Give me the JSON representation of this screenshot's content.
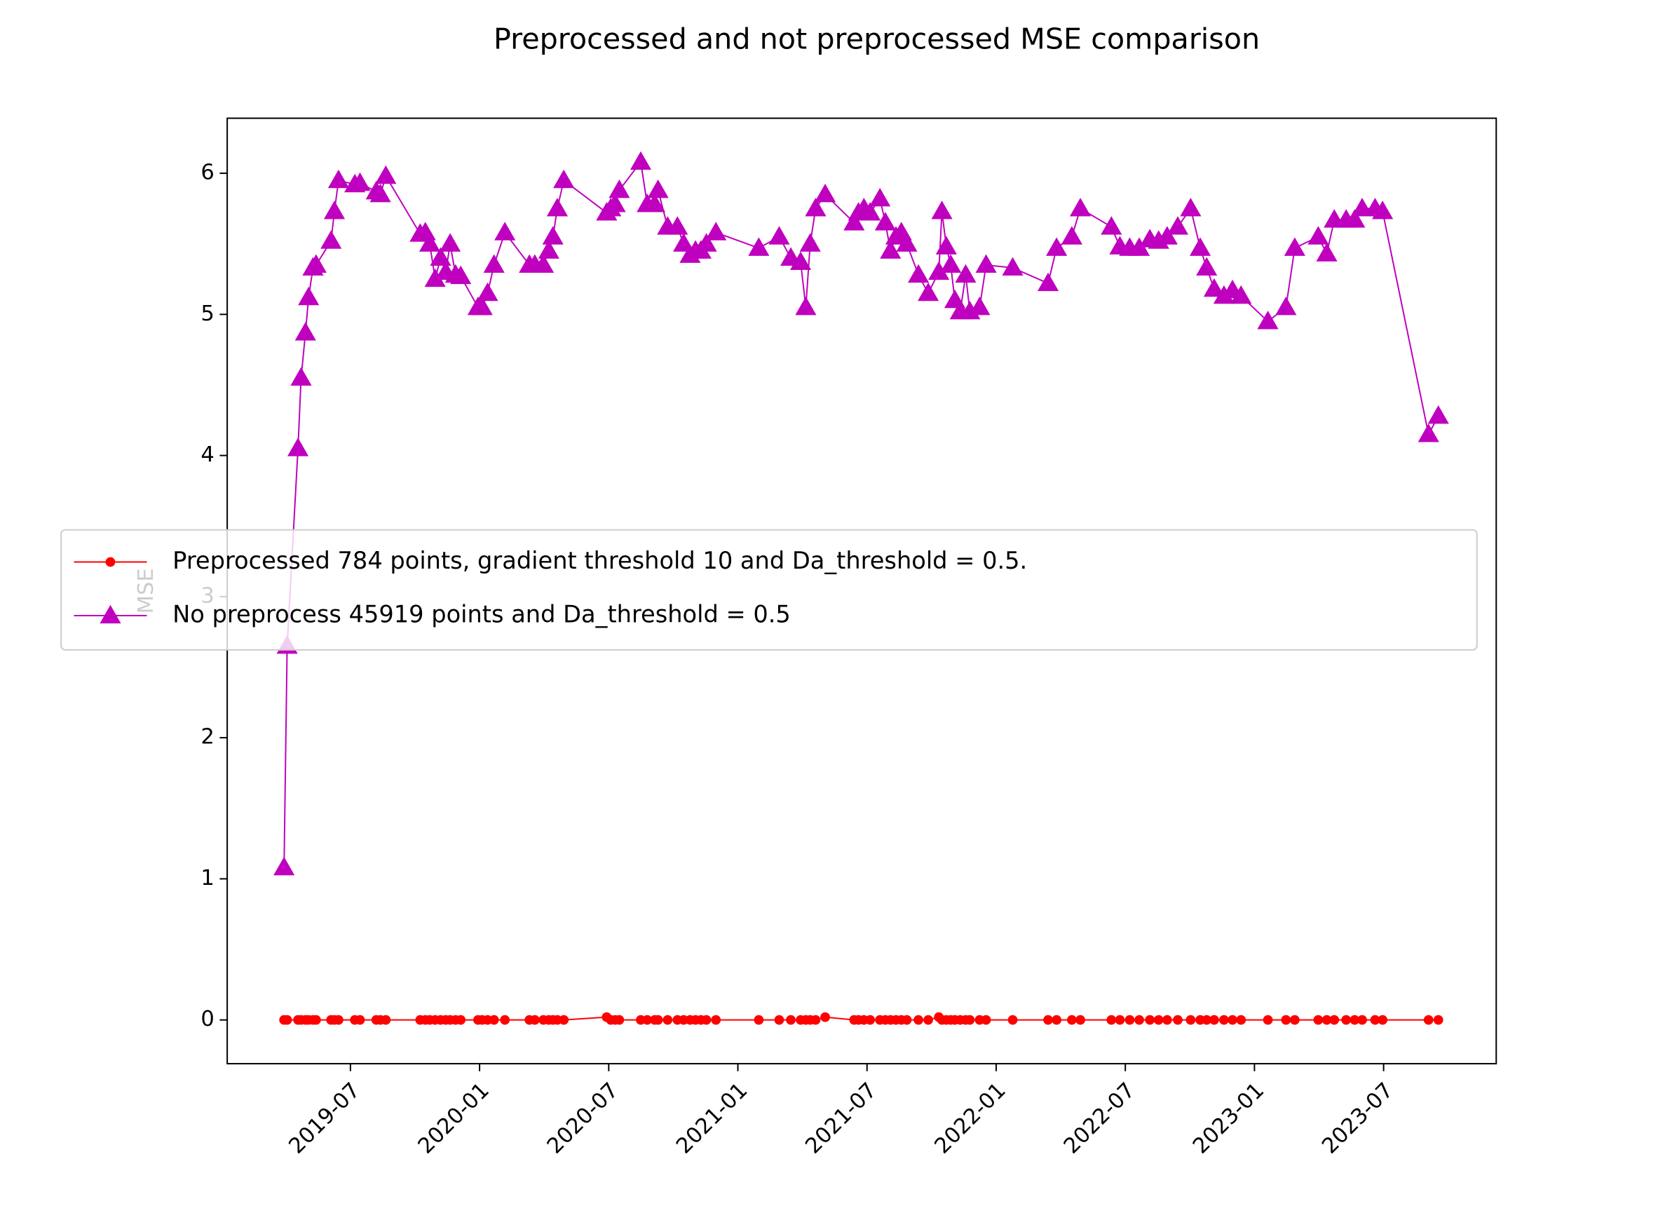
{
  "chart_data": {
    "type": "line",
    "title": "Preprocessed and not preprocessed MSE comparison",
    "ylabel": "MSE",
    "x": [
      2019.243,
      2019.255,
      2019.297,
      2019.309,
      2019.326,
      2019.338,
      2019.355,
      2019.367,
      2019.425,
      2019.438,
      2019.454,
      2019.517,
      2019.537,
      2019.6,
      2019.616,
      2019.637,
      2019.77,
      2019.79,
      2019.807,
      2019.828,
      2019.849,
      2019.869,
      2019.886,
      2019.907,
      2019.927,
      2019.994,
      2020.01,
      2020.031,
      2020.056,
      2020.098,
      2020.193,
      2020.214,
      2020.247,
      2020.268,
      2020.284,
      2020.301,
      2020.326,
      2020.492,
      2020.508,
      2020.525,
      2020.541,
      2020.624,
      2020.649,
      2020.678,
      2020.691,
      2020.728,
      2020.766,
      2020.79,
      2020.815,
      2020.836,
      2020.857,
      2020.878,
      2020.915,
      2021.081,
      2021.16,
      2021.205,
      2021.243,
      2021.263,
      2021.28,
      2021.301,
      2021.338,
      2021.45,
      2021.467,
      2021.488,
      2021.512,
      2021.55,
      2021.571,
      2021.591,
      2021.612,
      2021.633,
      2021.654,
      2021.699,
      2021.737,
      2021.778,
      2021.79,
      2021.807,
      2021.824,
      2021.84,
      2021.861,
      2021.882,
      2021.898,
      2021.936,
      2021.961,
      2022.064,
      2022.201,
      2022.234,
      2022.293,
      2022.326,
      2022.446,
      2022.479,
      2022.517,
      2022.554,
      2022.595,
      2022.629,
      2022.662,
      2022.703,
      2022.753,
      2022.79,
      2022.815,
      2022.844,
      2022.882,
      2022.915,
      2022.948,
      2023.052,
      2023.122,
      2023.156,
      2023.247,
      2023.28,
      2023.309,
      2023.355,
      2023.388,
      2023.417,
      2023.467,
      2023.496,
      2023.674,
      2023.712
    ],
    "series": [
      {
        "name": "Preprocessed 784 points, gradient threshold 10 and Da_threshold = 0.5.",
        "color": "#ff0000",
        "marker": "circle",
        "values": [
          0,
          0,
          0,
          0,
          0,
          0,
          0,
          0,
          0,
          0,
          0,
          0,
          0,
          0,
          0,
          0,
          0,
          0,
          0,
          0,
          0,
          0,
          0,
          0,
          0,
          0,
          0,
          0,
          0,
          0,
          0,
          0,
          0,
          0,
          0,
          0,
          0,
          0.02,
          0,
          0,
          0,
          0,
          0,
          0,
          0,
          0,
          0,
          0,
          0,
          0,
          0,
          0,
          0,
          0,
          0,
          0,
          0,
          0,
          0,
          0,
          0.02,
          0,
          0,
          0,
          0,
          0,
          0,
          0,
          0,
          0,
          0,
          0,
          0,
          0.02,
          0,
          0,
          0,
          0,
          0,
          0,
          0,
          0,
          0,
          0,
          0,
          0,
          0,
          0,
          0,
          0,
          0,
          0,
          0,
          0,
          0,
          0,
          0,
          0,
          0,
          0,
          0,
          0,
          0,
          0,
          0,
          0,
          0,
          0,
          0,
          0,
          0,
          0,
          0,
          0,
          0,
          0
        ]
      },
      {
        "name": "No preprocess 45919 points and Da_threshold = 0.5",
        "color": "#bf00bf",
        "marker": "triangle",
        "values": [
          1.08,
          2.65,
          4.05,
          4.55,
          4.87,
          5.12,
          5.33,
          5.35,
          5.52,
          5.73,
          5.95,
          5.92,
          5.93,
          5.87,
          5.85,
          5.98,
          5.57,
          5.58,
          5.5,
          5.25,
          5.4,
          5.3,
          5.5,
          5.28,
          5.27,
          5.05,
          5.05,
          5.15,
          5.35,
          5.58,
          5.35,
          5.35,
          5.35,
          5.45,
          5.55,
          5.75,
          5.95,
          5.72,
          5.75,
          5.78,
          5.88,
          6.08,
          5.78,
          5.78,
          5.88,
          5.62,
          5.62,
          5.5,
          5.42,
          5.45,
          5.45,
          5.5,
          5.58,
          5.47,
          5.55,
          5.4,
          5.37,
          5.05,
          5.5,
          5.75,
          5.85,
          5.65,
          5.72,
          5.75,
          5.72,
          5.82,
          5.65,
          5.45,
          5.55,
          5.58,
          5.5,
          5.28,
          5.15,
          5.3,
          5.73,
          5.48,
          5.35,
          5.1,
          5.02,
          5.28,
          5.02,
          5.05,
          5.35,
          5.33,
          5.22,
          5.47,
          5.55,
          5.75,
          5.62,
          5.48,
          5.47,
          5.47,
          5.53,
          5.52,
          5.55,
          5.62,
          5.75,
          5.47,
          5.33,
          5.18,
          5.13,
          5.17,
          5.13,
          4.95,
          5.05,
          5.47,
          5.55,
          5.43,
          5.67,
          5.67,
          5.67,
          5.75,
          5.75,
          5.73,
          4.15,
          4.28
        ]
      }
    ],
    "xlim": [
      2019.023,
      2023.936
    ],
    "xticks": [
      {
        "value": 2019.5,
        "label": "2019-07"
      },
      {
        "value": 2020.0,
        "label": "2020-01"
      },
      {
        "value": 2020.5,
        "label": "2020-07"
      },
      {
        "value": 2021.0,
        "label": "2021-01"
      },
      {
        "value": 2021.5,
        "label": "2021-07"
      },
      {
        "value": 2022.0,
        "label": "2022-01"
      },
      {
        "value": 2022.5,
        "label": "2022-07"
      },
      {
        "value": 2023.0,
        "label": "2023-01"
      },
      {
        "value": 2023.5,
        "label": "2023-07"
      }
    ],
    "ylim": [
      -0.31,
      6.39
    ],
    "yticks": [
      0,
      1,
      2,
      3,
      4,
      5,
      6
    ],
    "legend": "center left"
  }
}
